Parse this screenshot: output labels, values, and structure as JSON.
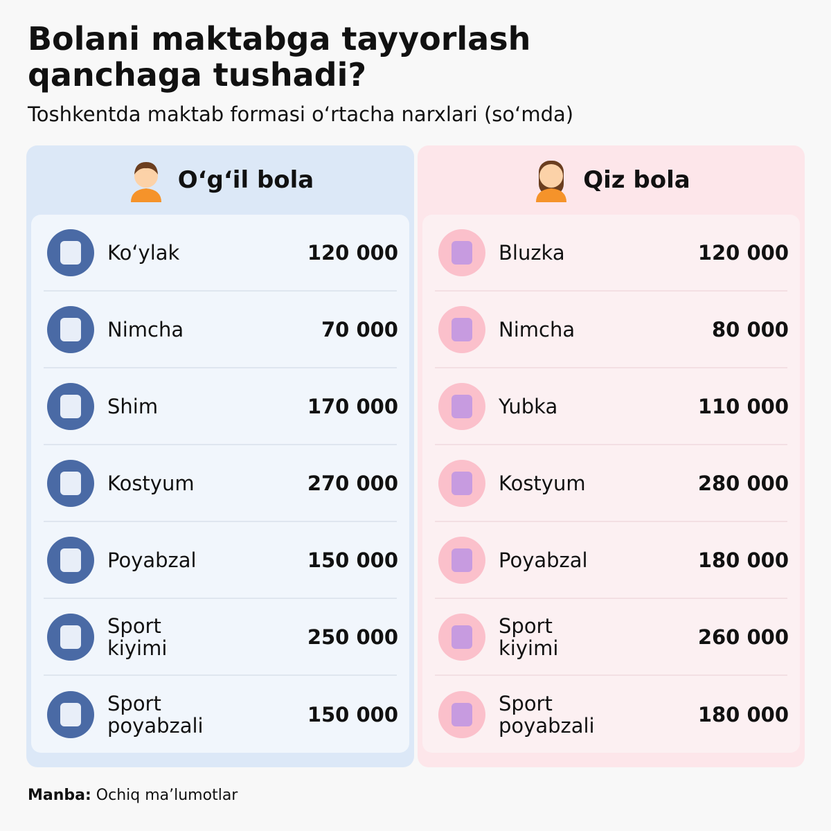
{
  "header": {
    "title": "Bolani maktabga tayyorlash qanchaga tushadi?",
    "subtitle": "Toshkentda maktab formasi o‘rtacha narxlari (so‘mda)"
  },
  "columns": [
    {
      "title": "O‘g‘il bola",
      "rows": [
        [
          "Ko‘ylak",
          "120 000"
        ],
        [
          "Nimcha",
          "70 000"
        ],
        [
          "Shim",
          "170 000"
        ],
        [
          "Kostyum",
          "270 000"
        ],
        [
          "Poyabzal",
          "150 000"
        ],
        [
          "Sport kiyimi",
          "250 000"
        ],
        [
          "Sport poyabzali",
          "150 000"
        ]
      ]
    },
    {
      "title": "Qiz bola",
      "rows": [
        [
          "Bluzka",
          "120 000"
        ],
        [
          "Nimcha",
          "80 000"
        ],
        [
          "Yubka",
          "110 000"
        ],
        [
          "Kostyum",
          "280 000"
        ],
        [
          "Poyabzal",
          "180 000"
        ],
        [
          "Sport kiyimi",
          "260 000"
        ],
        [
          "Sport poyabzali",
          "180 000"
        ]
      ]
    }
  ],
  "footer": {
    "label": "Manba:",
    "text": "Ochiq ma’lumotlar"
  }
}
